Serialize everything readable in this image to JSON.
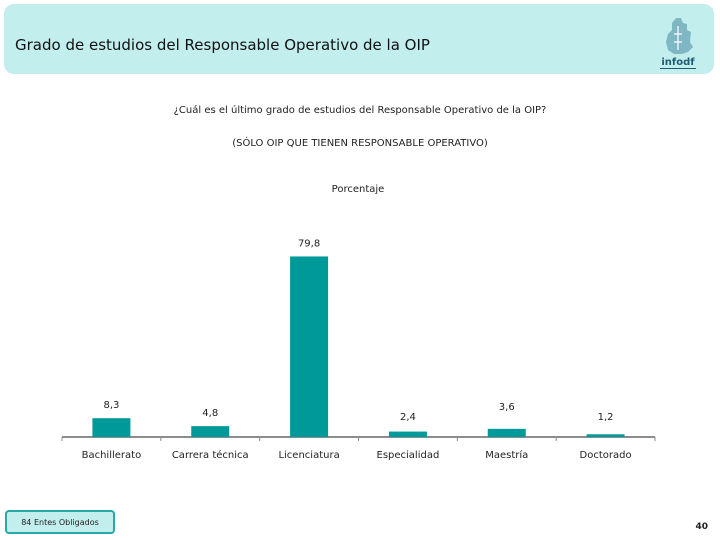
{
  "header": {
    "title": "Grado de estudios del Responsable Operativo de la OIP",
    "logo_text": "info df"
  },
  "question": "¿Cuál es el último grado de estudios del Responsable Operativo de la OIP?",
  "subtitle": "(SÓLO OIP QUE TIENEN RESPONSABLE OPERATIVO)",
  "chart_data": {
    "type": "bar",
    "title": "Porcentaje",
    "categories": [
      "Bachillerato",
      "Carrera técnica",
      "Licenciatura",
      "Especialidad",
      "Maestría",
      "Doctorado"
    ],
    "values": [
      8.3,
      4.8,
      79.8,
      2.4,
      3.6,
      1.2
    ],
    "value_labels": [
      "8,3",
      "4,8",
      "79,8",
      "2,4",
      "3,6",
      "1,2"
    ],
    "ylim": [
      0,
      80
    ],
    "grid": false,
    "legend": false,
    "bar_color": "#009999"
  },
  "footer": {
    "note": "84 Entes Obligados",
    "page_number": "40"
  },
  "colors": {
    "header_bg": "#c2eeee",
    "accent": "#009999",
    "footer_border": "#2aa8a8"
  }
}
